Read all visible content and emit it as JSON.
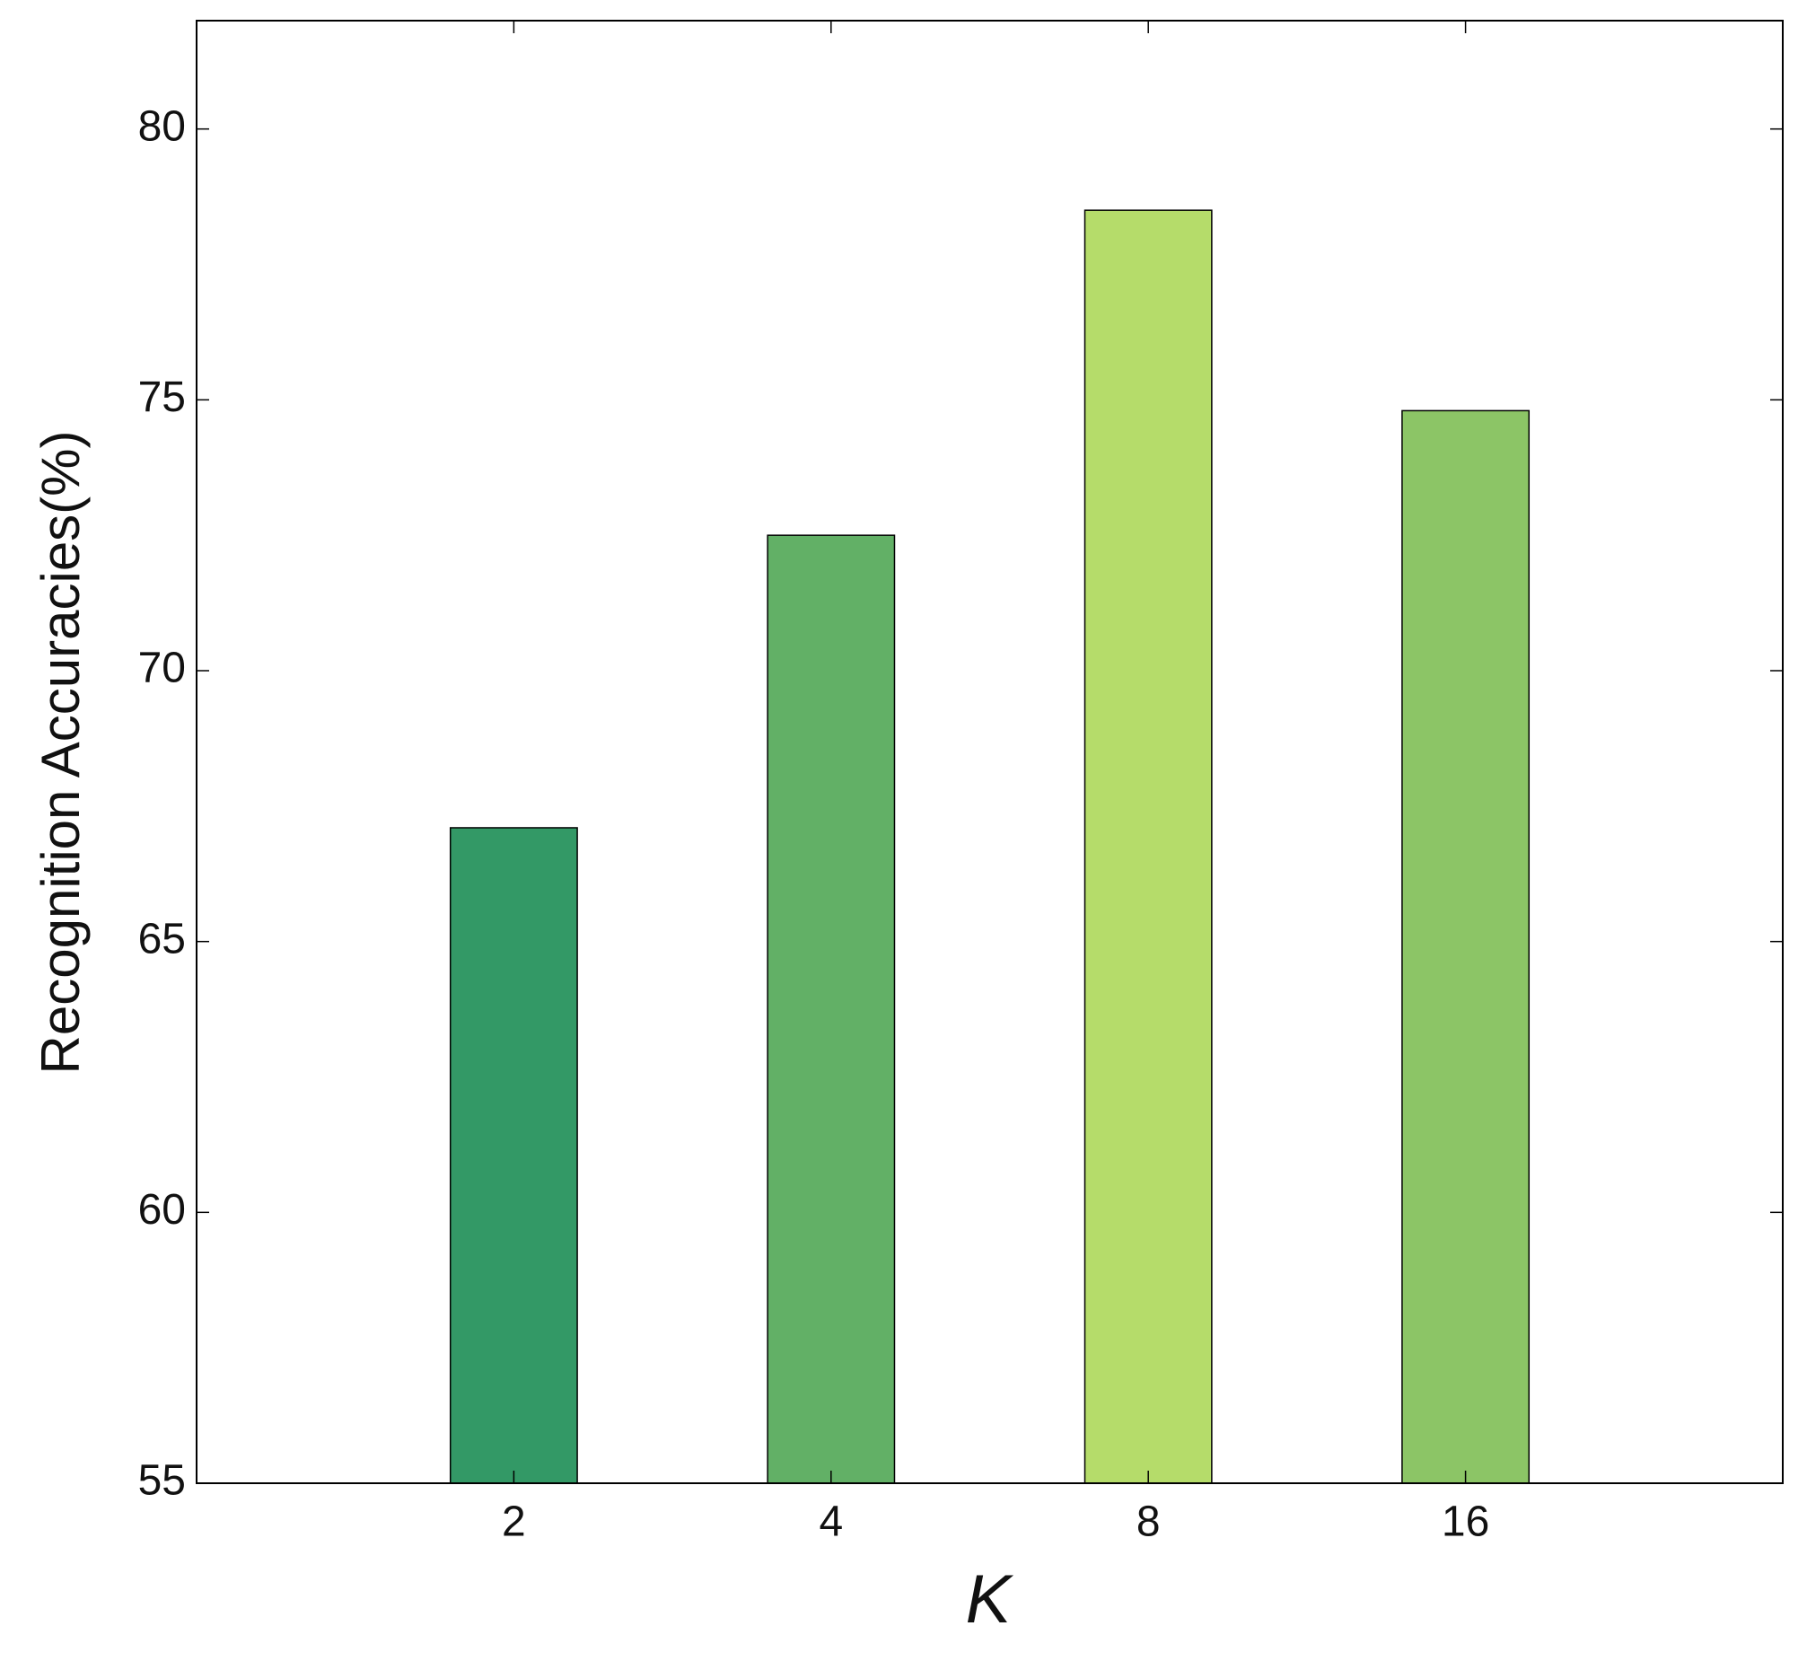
{
  "chart_data": {
    "type": "bar",
    "xlabel": "K",
    "ylabel": "Recognition Accuracies(%)",
    "categories": [
      "2",
      "4",
      "8",
      "16"
    ],
    "values": [
      67.1,
      72.5,
      78.5,
      74.8
    ],
    "colors": [
      "#339966",
      "#62b066",
      "#b5dc6a",
      "#8cc566"
    ],
    "ylim": [
      55,
      82
    ],
    "yticks": [
      55,
      60,
      65,
      70,
      75,
      80
    ],
    "grid": false
  }
}
